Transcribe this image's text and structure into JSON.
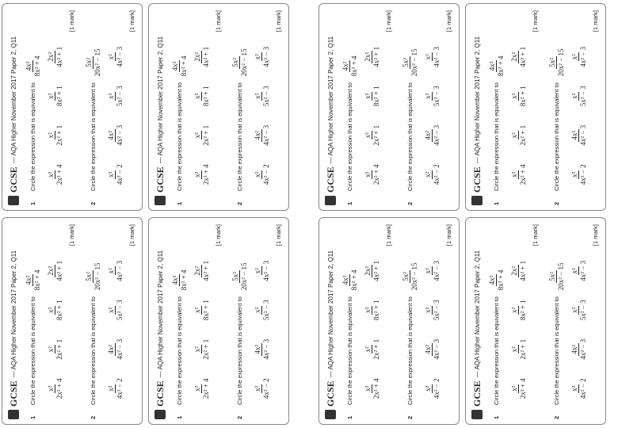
{
  "card": {
    "logo": "GCSE",
    "source": "— AQA Higher November 2017 Paper 2, Q11",
    "questions": [
      {
        "number": "1",
        "prompt": "Circle the expression that is equivalent to",
        "expression": {
          "numerator": "4x²",
          "denominator": "8x² + 4"
        },
        "options": [
          {
            "numerator": "x²",
            "denominator": "2x² + 4"
          },
          {
            "numerator": "x²",
            "denominator": "2x² + 1"
          },
          {
            "numerator": "x²",
            "denominator": "8x² + 1"
          },
          {
            "numerator": "2x²",
            "denominator": "4x² + 1"
          }
        ],
        "marks": "[1 mark]"
      },
      {
        "number": "2",
        "prompt": "Circle the expression that is equivalent to",
        "expression": {
          "numerator": "5x²",
          "denominator": "20x² − 15"
        },
        "options": [
          {
            "numerator": "x²",
            "denominator": "4x² − 2"
          },
          {
            "numerator": "4x²",
            "denominator": "4x² − 3"
          },
          {
            "numerator": "x²",
            "denominator": "5x² − 3"
          },
          {
            "numerator": "x²",
            "denominator": "4x² − 3"
          }
        ],
        "marks": "[1 mark]"
      }
    ]
  }
}
